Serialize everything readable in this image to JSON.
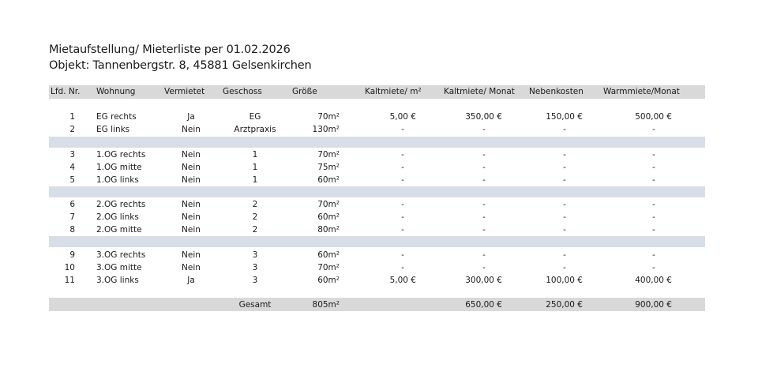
{
  "title": "Mietaufstellung/ Mieterliste per 01.02.2026",
  "object": "Objekt: Tannenbergstr. 8, 45881 Gelsenkirchen",
  "headers": [
    "Lfd. Nr.",
    "Wohnung",
    "Vermietet",
    "Geschoss",
    "Größe",
    "Kaltmiete/ m²",
    "Kaltmiete/ Monat",
    "Nebenkosten",
    "Warmmiete/Monat"
  ],
  "rows": [
    [
      "1",
      "EG rechts",
      "Ja",
      "EG",
      "70m²",
      "5,00 €",
      "350,00 €",
      "150,00 €",
      "500,00 €"
    ],
    [
      "2",
      "EG links",
      "Nein",
      "Arztpraxis",
      "130m²",
      "-",
      "-",
      "-",
      "-"
    ],
    [
      "3",
      "1.OG rechts",
      "Nein",
      "1",
      "70m²",
      "-",
      "-",
      "-",
      "-"
    ],
    [
      "4",
      "1.OG mitte",
      "Nein",
      "1",
      "75m²",
      "-",
      "-",
      "-",
      "-"
    ],
    [
      "5",
      "1.OG links",
      "Nein",
      "1",
      "60m²",
      "-",
      "-",
      "-",
      "-"
    ],
    [
      "6",
      "2.OG rechts",
      "Nein",
      "2",
      "70m²",
      "-",
      "-",
      "-",
      "-"
    ],
    [
      "7",
      "2.OG links",
      "Nein",
      "2",
      "60m²",
      "-",
      "-",
      "-",
      "-"
    ],
    [
      "8",
      "2.OG mitte",
      "Nein",
      "2",
      "80m²",
      "-",
      "-",
      "-",
      "-"
    ],
    [
      "9",
      "3.OG rechts",
      "Nein",
      "3",
      "60m²",
      "-",
      "-",
      "-",
      "-"
    ],
    [
      "10",
      "3.OG mitte",
      "Nein",
      "3",
      "70m²",
      "-",
      "-",
      "-",
      "-"
    ],
    [
      "11",
      "3.OG links",
      "Ja",
      "3",
      "60m²",
      "5,00 €",
      "300,00 €",
      "100,00 €",
      "400,00 €"
    ]
  ],
  "total": {
    "label": "Gesamt",
    "size": "805m²",
    "kalt": "650,00 €",
    "neben": "250,00 €",
    "warm": "900,00 €"
  }
}
